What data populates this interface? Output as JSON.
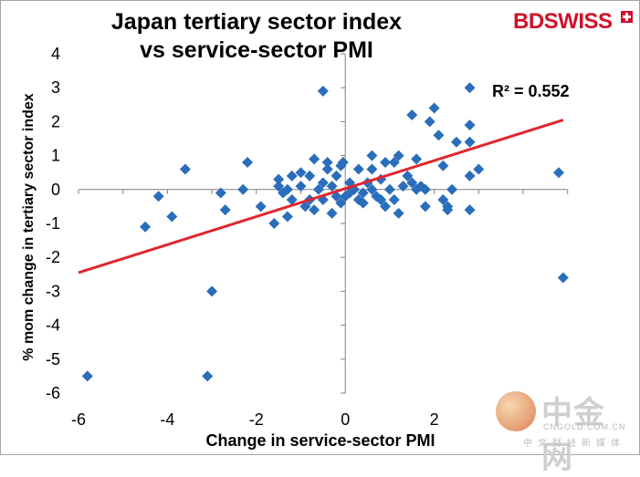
{
  "chart_data": {
    "type": "scatter",
    "title": "Japan tertiary sector index vs service-sector PMI",
    "title_lines": [
      "Japan tertiary sector index",
      "vs service-sector PMI"
    ],
    "xlabel": "Change in service-sector PMI",
    "ylabel": "% mom change in tertiary sector index",
    "xlim": [
      -6,
      5
    ],
    "ylim": [
      -6,
      4
    ],
    "x_ticks": [
      -6,
      -4,
      -2,
      0,
      2
    ],
    "y_ticks": [
      -6,
      -5,
      -4,
      -3,
      -2,
      -1,
      0,
      1,
      2,
      3,
      4
    ],
    "grid": false,
    "marker_color": "#2a6ebb",
    "trendline": {
      "type": "linear",
      "color": "#e0262e",
      "x": [
        -6,
        4.9
      ],
      "y": [
        -2.45,
        2.05
      ],
      "r_squared_label": "R² = 0.552"
    },
    "points": [
      [
        -5.8,
        -5.5
      ],
      [
        -3.1,
        -5.5
      ],
      [
        -3.0,
        -3.0
      ],
      [
        4.9,
        -2.6
      ],
      [
        -4.5,
        -1.1
      ],
      [
        -3.9,
        -0.8
      ],
      [
        -4.2,
        -0.2
      ],
      [
        -3.6,
        0.6
      ],
      [
        -2.8,
        -0.1
      ],
      [
        -2.7,
        -0.6
      ],
      [
        -2.3,
        0.0
      ],
      [
        -2.2,
        0.8
      ],
      [
        -1.9,
        -0.5
      ],
      [
        -1.6,
        -1.0
      ],
      [
        -1.5,
        0.3
      ],
      [
        -1.5,
        0.1
      ],
      [
        -1.4,
        -0.1
      ],
      [
        -1.3,
        0.0
      ],
      [
        -1.3,
        -0.8
      ],
      [
        -1.2,
        -0.3
      ],
      [
        -1.2,
        0.4
      ],
      [
        -1.0,
        0.5
      ],
      [
        -1.0,
        0.1
      ],
      [
        -0.9,
        -0.5
      ],
      [
        -0.8,
        0.4
      ],
      [
        -0.8,
        -0.3
      ],
      [
        -0.7,
        -0.6
      ],
      [
        -0.7,
        0.9
      ],
      [
        -0.6,
        0.0
      ],
      [
        -0.5,
        0.2
      ],
      [
        -0.5,
        -0.3
      ],
      [
        -0.5,
        2.9
      ],
      [
        -0.4,
        0.8
      ],
      [
        -0.4,
        0.6
      ],
      [
        -0.3,
        -0.7
      ],
      [
        -0.3,
        0.1
      ],
      [
        -0.2,
        0.4
      ],
      [
        -0.2,
        -0.2
      ],
      [
        -0.1,
        0.7
      ],
      [
        -0.1,
        -0.4
      ],
      [
        -0.05,
        0.8
      ],
      [
        0.0,
        -0.2
      ],
      [
        0.1,
        -0.1
      ],
      [
        0.1,
        0.2
      ],
      [
        0.2,
        0.0
      ],
      [
        0.3,
        -0.3
      ],
      [
        0.3,
        0.6
      ],
      [
        0.4,
        -0.1
      ],
      [
        0.4,
        -0.4
      ],
      [
        0.5,
        0.2
      ],
      [
        0.6,
        0.0
      ],
      [
        0.6,
        0.6
      ],
      [
        0.6,
        1.0
      ],
      [
        0.7,
        -0.2
      ],
      [
        0.8,
        -0.3
      ],
      [
        0.8,
        0.3
      ],
      [
        0.9,
        -0.5
      ],
      [
        0.9,
        0.8
      ],
      [
        1.0,
        0.0
      ],
      [
        1.1,
        -0.3
      ],
      [
        1.1,
        0.8
      ],
      [
        1.2,
        1.0
      ],
      [
        1.2,
        -0.7
      ],
      [
        1.3,
        0.1
      ],
      [
        1.4,
        0.4
      ],
      [
        1.5,
        0.2
      ],
      [
        1.6,
        0.0
      ],
      [
        1.6,
        0.9
      ],
      [
        1.7,
        0.1
      ],
      [
        1.5,
        2.2
      ],
      [
        1.8,
        0.0
      ],
      [
        1.8,
        -0.5
      ],
      [
        1.9,
        2.0
      ],
      [
        2.0,
        2.4
      ],
      [
        2.1,
        1.6
      ],
      [
        2.2,
        -0.3
      ],
      [
        2.2,
        0.7
      ],
      [
        2.3,
        -0.5
      ],
      [
        2.3,
        -0.6
      ],
      [
        2.4,
        0.0
      ],
      [
        2.5,
        1.4
      ],
      [
        2.8,
        3.0
      ],
      [
        2.8,
        1.9
      ],
      [
        2.8,
        1.4
      ],
      [
        2.8,
        0.4
      ],
      [
        2.8,
        -0.6
      ],
      [
        3.0,
        0.6
      ],
      [
        4.8,
        0.5
      ]
    ]
  },
  "brand": {
    "text_bd": "BD",
    "text_swiss": "SWISS"
  },
  "watermark": {
    "cn": "中金网",
    "en": "CNGOLD.COM.CN",
    "sub": "中文财经新媒体"
  }
}
